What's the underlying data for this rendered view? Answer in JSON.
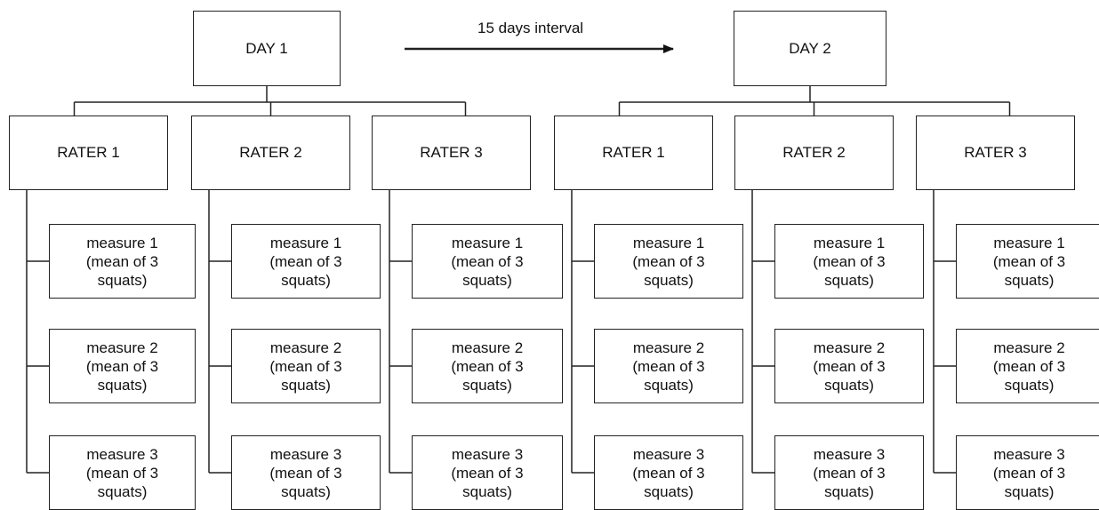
{
  "interval_label": "15 days interval",
  "days": [
    {
      "label": "DAY 1",
      "raters": [
        {
          "label": "RATER 1",
          "measures": [
            "measure 1",
            "measure 2",
            "measure 3"
          ]
        },
        {
          "label": "RATER 2",
          "measures": [
            "measure 1",
            "measure 2",
            "measure 3"
          ]
        },
        {
          "label": "RATER 3",
          "measures": [
            "measure 1",
            "measure 2",
            "measure 3"
          ]
        }
      ]
    },
    {
      "label": "DAY 2",
      "raters": [
        {
          "label": "RATER 1",
          "measures": [
            "measure 1",
            "measure 2",
            "measure 3"
          ]
        },
        {
          "label": "RATER 2",
          "measures": [
            "measure 1",
            "measure 2",
            "measure 3"
          ]
        },
        {
          "label": "RATER 3",
          "measures": [
            "measure 1",
            "measure 2",
            "measure 3"
          ]
        }
      ]
    }
  ],
  "measure_detail_line1": "(mean of 3",
  "measure_detail_line2": "squats)"
}
